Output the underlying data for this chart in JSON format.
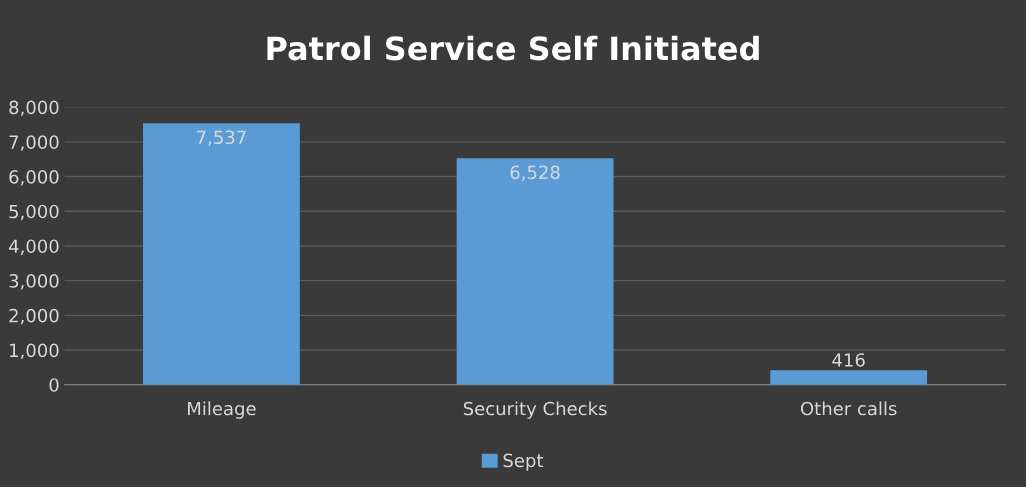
{
  "chart_data": {
    "type": "bar",
    "title": "Patrol Service Self Initiated",
    "categories": [
      "Mileage",
      "Security Checks",
      "Other calls"
    ],
    "series": [
      {
        "name": "Sept",
        "color": "#5b9bd5",
        "values": [
          7537,
          6528,
          416
        ],
        "value_labels": [
          "7,537",
          "6,528",
          "416"
        ]
      }
    ],
    "ylim": [
      0,
      8000
    ],
    "yticks": [
      {
        "value": 0,
        "label": "0"
      },
      {
        "value": 1000,
        "label": "1,000"
      },
      {
        "value": 2000,
        "label": "2,000"
      },
      {
        "value": 3000,
        "label": "3,000"
      },
      {
        "value": 4000,
        "label": "4,000"
      },
      {
        "value": 5000,
        "label": "5,000"
      },
      {
        "value": 6000,
        "label": "6,000"
      },
      {
        "value": 7000,
        "label": "7,000"
      },
      {
        "value": 8000,
        "label": "8,000"
      }
    ],
    "grid": "y",
    "legend": "bottom"
  }
}
